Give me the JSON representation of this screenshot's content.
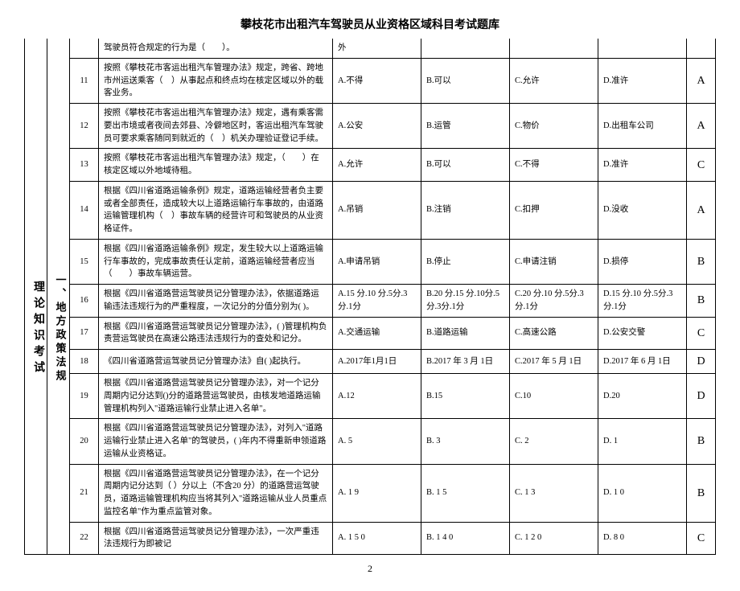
{
  "title": "攀枝花市出租汽车驾驶员从业资格区域科目考试题库",
  "pageNumber": "2",
  "category1": "理论知识考试",
  "category2": "一、地方政策法规",
  "rows": [
    {
      "num": "",
      "q": "驾驶员符合规定的行为是（　　）。",
      "a": "外",
      "b": "",
      "c": "",
      "d": "",
      "ans": ""
    },
    {
      "num": "11",
      "q": "按照《攀枝花市客运出租汽车管理办法》规定，跨省、跨地市州运送乘客（　）从事起点和终点均在核定区域以外的载客业务。",
      "a": "A.不得",
      "b": "B.可以",
      "c": "C.允许",
      "d": "D.准许",
      "ans": "A"
    },
    {
      "num": "12",
      "q": "按照《攀枝花市客运出租汽车管理办法》规定，遇有乘客需要出市境或者夜间去郊县、冷僻地区时，客运出租汽车驾驶员可要求乘客随同到就近的（　）机关办理验证登记手续。",
      "a": "A.公安",
      "b": "B.运管",
      "c": "C.物价",
      "d": "D.出租车公司",
      "ans": "A"
    },
    {
      "num": "13",
      "q": "按照《攀枝花市客运出租汽车管理办法》规定，（　　）在核定区域以外地域待租。",
      "a": "A.允许",
      "b": "B.可以",
      "c": "C.不得",
      "d": "D.准许",
      "ans": "C"
    },
    {
      "num": "14",
      "q": "根据《四川省道路运输条例》规定，道路运输经营者负主要或者全部责任，造成较大以上道路运输行车事故的，由道路运输管理机构（　）事故车辆的经营许可和驾驶员的从业资格证件。",
      "a": "A.吊销",
      "b": "B.注销",
      "c": "C.扣押",
      "d": "D.没收",
      "ans": "A"
    },
    {
      "num": "15",
      "q": "根据《四川省道路运输条例》规定，发生较大以上道路运输行车事故的，完成事故责任认定前，道路运输经营者应当（　　）事故车辆运营。",
      "a": "A.申请吊销",
      "b": "B.停止",
      "c": "C.申请注销",
      "d": "D.损停",
      "ans": "B"
    },
    {
      "num": "16",
      "q": "根据《四川省道路营运驾驶员记分管理办法》，依据道路运输违法违规行为的严重程度，一次记分的分值分别为( )。",
      "a": "A.15 分.10 分.5分.3分.1分",
      "b": "B.20 分.15 分.10分.5分.3分.1分",
      "c": "C.20 分.10 分.5分.3分.1分",
      "d": "D.15 分.10 分.5分.3分.1分",
      "ans": "B"
    },
    {
      "num": "17",
      "q": "根据《四川省道路营运驾驶员记分管理办法》，( )管理机构负责营运驾驶员在高速公路违法违规行为的查处和记分。",
      "a": "A.交通运输",
      "b": "B.道路运输",
      "c": "C.高速公路",
      "d": "D.公安交警",
      "ans": "C"
    },
    {
      "num": "18",
      "q": "《四川省道路营运驾驶员记分管理办法》自( )起执行。",
      "a": "A.2017年1月1日",
      "b": "B.2017 年 3 月 1日",
      "c": "C.2017 年 5 月 1日",
      "d": "D.2017 年 6 月 1日",
      "ans": "D"
    },
    {
      "num": "19",
      "q": "根据《四川省道路营运驾驶员记分管理办法》，对一个记分周期内记分达到()分的道路营运驾驶员，由核发地道路运输管理机构列入\"道路运输行业禁止进入名单\"。",
      "a": "A.12",
      "b": "B.15",
      "c": "C.10",
      "d": "D.20",
      "ans": "D"
    },
    {
      "num": "20",
      "q": "根据《四川省道路营运驾驶员记分管理办法》，对列入\"道路运输行业禁止进入名单\"的驾驶员，( )年内不得重新申领道路运输从业资格证。",
      "a": "A. 5",
      "b": "B. 3",
      "c": "C. 2",
      "d": "D. 1",
      "ans": "B"
    },
    {
      "num": "21",
      "q": "根据《四川省道路营运驾驶员记分管理办法》，在一个记分周期内记分达到（ ）分以上（不含20 分）的道路营运驾驶员，道路运输管理机构应当将其列入\"道路运输从业人员重点监控名单\"作为重点监管对象。",
      "a": "A. 1 9",
      "b": "B. 1 5",
      "c": "C. 1 3",
      "d": "D. 1 0",
      "ans": "B"
    },
    {
      "num": "22",
      "q": "根据《四川省道路营运驾驶员记分管理办法》，一次严重违法违规行为即被记",
      "a": "A. 1 5 0",
      "b": "B. 1 4 0",
      "c": "C. 1 2 0",
      "d": "D. 8 0",
      "ans": "C"
    }
  ]
}
